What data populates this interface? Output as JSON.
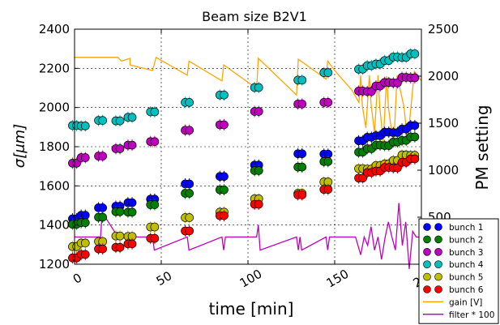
{
  "chart_data": {
    "type": "scatter",
    "title": "Beam size B2V1",
    "xlabel": "time [min]",
    "ylabel": "σ[μm]",
    "y2label": "PM setting",
    "xlim": [
      0,
      200
    ],
    "ylim": [
      1200,
      2400
    ],
    "y2lim": [
      0,
      2500
    ],
    "xticks": [
      "0",
      "50",
      "100",
      "150",
      "200"
    ],
    "yticks": [
      "1200",
      "1400",
      "1600",
      "1800",
      "2000",
      "2200",
      "2400"
    ],
    "y2ticks": [
      "0",
      "500",
      "1000",
      "1500",
      "2000",
      "2500"
    ],
    "grid": true,
    "legend_position": "lower right",
    "measurement_times": [
      0,
      5,
      15,
      25,
      32,
      45,
      65,
      85,
      105,
      130,
      145,
      165,
      170,
      175,
      180,
      185,
      190,
      195
    ],
    "series": [
      {
        "name": "bunch 1",
        "color": "#0000ff",
        "marker": "circle",
        "values": [
          1440,
          1450,
          1480,
          1500,
          1510,
          1540,
          1610,
          1640,
          1710,
          1760,
          1770,
          1830,
          1840,
          1860,
          1870,
          1880,
          1890,
          1900
        ]
      },
      {
        "name": "bunch 2",
        "color": "#008000",
        "marker": "circle",
        "values": [
          1400,
          1420,
          1440,
          1460,
          1470,
          1500,
          1570,
          1580,
          1670,
          1700,
          1720,
          1780,
          1790,
          1800,
          1810,
          1820,
          1840,
          1850
        ]
      },
      {
        "name": "bunch 3",
        "color": "#bf00bf",
        "marker": "circle",
        "values": [
          1720,
          1740,
          1760,
          1790,
          1800,
          1830,
          1880,
          1920,
          1980,
          2010,
          2030,
          2080,
          2090,
          2110,
          2120,
          2130,
          2150,
          2160
        ]
      },
      {
        "name": "bunch 4",
        "color": "#00bfbf",
        "marker": "circle",
        "values": [
          1900,
          1910,
          1930,
          1940,
          1950,
          1970,
          2030,
          2060,
          2110,
          2140,
          2170,
          2200,
          2210,
          2230,
          2240,
          2250,
          2260,
          2270
        ]
      },
      {
        "name": "bunch 5",
        "color": "#bfbf00",
        "marker": "circle",
        "values": [
          1290,
          1300,
          1320,
          1340,
          1350,
          1390,
          1430,
          1470,
          1530,
          1570,
          1620,
          1680,
          1690,
          1700,
          1720,
          1730,
          1750,
          1760
        ]
      },
      {
        "name": "bunch 6",
        "color": "#ff0000",
        "marker": "circle",
        "values": [
          1240,
          1250,
          1270,
          1290,
          1300,
          1340,
          1370,
          1440,
          1510,
          1550,
          1590,
          1640,
          1660,
          1680,
          1690,
          1700,
          1720,
          1730
        ]
      }
    ],
    "lines": [
      {
        "name": "gain [V]",
        "color": "#ffa500",
        "axis": "right",
        "x": [
          0,
          25,
          27,
          32,
          32,
          45,
          47,
          65,
          66,
          85,
          86,
          105,
          106,
          128,
          129,
          145,
          146,
          150,
          160,
          164,
          165,
          166,
          168,
          170,
          171,
          173,
          175,
          176,
          178,
          180,
          181,
          184,
          186,
          190,
          192,
          196,
          200
        ],
        "y": [
          2200,
          2200,
          2160,
          2190,
          2120,
          2060,
          2200,
          2010,
          2160,
          1950,
          2120,
          1870,
          2190,
          1800,
          2180,
          1970,
          2160,
          2060,
          1850,
          1720,
          2010,
          1680,
          1450,
          2010,
          1700,
          1400,
          2010,
          1680,
          1300,
          2000,
          1670,
          1250,
          2010,
          1670,
          1300,
          2050,
          1950
        ]
      },
      {
        "name": "filter * 100",
        "color": "#bf00bf",
        "axis": "right",
        "x": [
          0,
          10,
          15,
          16,
          25,
          32,
          45,
          46,
          65,
          66,
          85,
          86,
          87,
          105,
          106,
          107,
          128,
          129,
          130,
          131,
          145,
          146,
          147,
          162,
          165,
          167,
          169,
          171,
          173,
          175,
          177,
          179,
          181,
          183,
          185,
          187,
          189,
          191,
          193,
          195,
          197,
          200
        ],
        "y": [
          290,
          290,
          290,
          550,
          290,
          290,
          290,
          150,
          290,
          150,
          290,
          150,
          290,
          290,
          420,
          150,
          290,
          150,
          290,
          150,
          290,
          150,
          290,
          290,
          100,
          290,
          200,
          400,
          150,
          290,
          50,
          280,
          450,
          290,
          150,
          650,
          200,
          450,
          -50,
          350,
          290,
          290
        ]
      }
    ],
    "legend": [
      "bunch 1",
      "bunch 2",
      "bunch 3",
      "bunch 4",
      "bunch 5",
      "bunch 6",
      "gain [V]",
      "filter * 100"
    ]
  }
}
